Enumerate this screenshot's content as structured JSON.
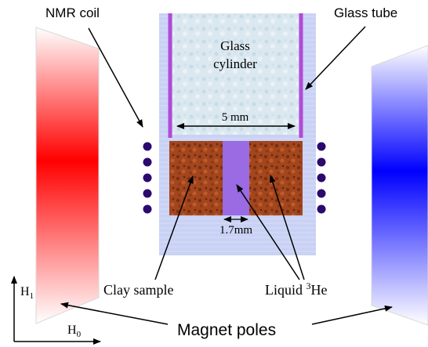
{
  "labels": {
    "nmr_coil": "NMR coil",
    "glass_tube": "Glass tube",
    "glass_cylinder_line1": "Glass",
    "glass_cylinder_line2": "cylinder",
    "width_5mm": "5 mm",
    "width_1_7mm": "1.7mm",
    "clay_sample": "Clay sample",
    "liquid_prefix": "Liquid ",
    "liquid_sup": "3",
    "liquid_suffix": "He",
    "magnet_poles": "Magnet poles",
    "axis_h1": "H",
    "axis_h1_sub": "1",
    "axis_h0": "H",
    "axis_h0_sub": "0"
  },
  "colors": {
    "north_pole": "#ff0000",
    "south_pole": "#0000ff",
    "glass_tube": "#c9d2f4",
    "glass_cylinder": "#dbe8f0",
    "clay": "#a2461e",
    "liquid_he": "#9a6be3",
    "coil_dots": "#2a0a6e",
    "tube_wall": "#b24bd6"
  },
  "coil": {
    "left_dots": 5,
    "right_dots": 5
  }
}
